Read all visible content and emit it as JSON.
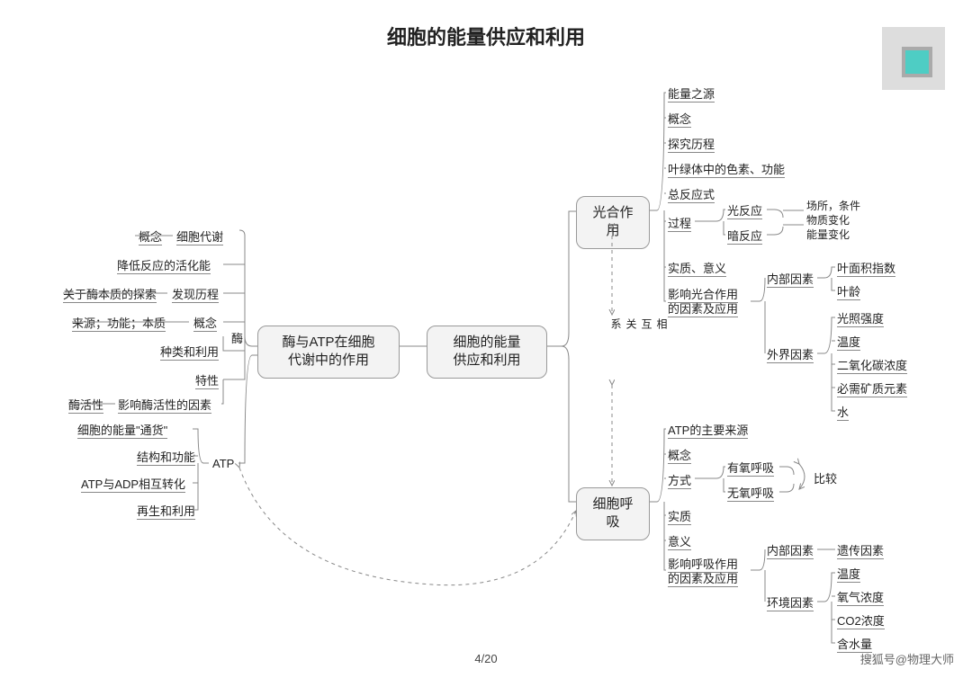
{
  "title": "细胞的能量供应和利用",
  "center": "细胞的能量\n供应和利用",
  "left_main": "酶与ATP在细胞\n代谢中的作用",
  "enzyme_tag": "酶",
  "atp_tag": "ATP",
  "enzyme": {
    "a": "概念",
    "a2": "细胞代谢",
    "b": "降低反应的活化能",
    "c1": "关于酶本质的探索",
    "c2": "发现历程",
    "d1": "来源；功能；本质",
    "d2": "概念",
    "e": "种类和利用",
    "f": "特性",
    "g1": "酶活性",
    "g2": "影响酶活性的因素"
  },
  "atp": {
    "a": "细胞的能量\"通货\"",
    "b": "结构和功能",
    "c": "ATP与ADP相互转化",
    "d": "再生和利用"
  },
  "photo_box": "光合作用",
  "resp_box": "细胞呼吸",
  "photo": {
    "a": "能量之源",
    "b": "概念",
    "c": "探究历程",
    "d": "叶绿体中的色素、功能",
    "e": "总反应式",
    "f": "过程",
    "f1": "光反应",
    "f2": "暗反应",
    "f_note1": "场所，条件",
    "f_note2": "物质变化",
    "f_note3": "能量变化",
    "g": "实质、意义",
    "h": "影响光合作用\n的因素及应用",
    "h1": "内部因素",
    "h1a": "叶面积指数",
    "h1b": "叶龄",
    "h2": "外界因素",
    "h2a": "光照强度",
    "h2b": "温度",
    "h2c": "二氧化碳浓度",
    "h2d": "必需矿质元素",
    "h2e": "水"
  },
  "resp": {
    "a": "ATP的主要来源",
    "b": "概念",
    "c": "方式",
    "c1": "有氧呼吸",
    "c2": "无氧呼吸",
    "c_note": "比较",
    "d": "实质",
    "e": "意义",
    "f": "影响呼吸作用\n的因素及应用",
    "f1": "内部因素",
    "f1a": "遗传因素",
    "f2": "环境因素",
    "f2a": "温度",
    "f2b": "氧气浓度",
    "f2c": "CO2浓度",
    "f2d": "含水量"
  },
  "rel": "相\n互\n关\n系",
  "pager": "4/20",
  "wm": "搜狐号@物理大师"
}
